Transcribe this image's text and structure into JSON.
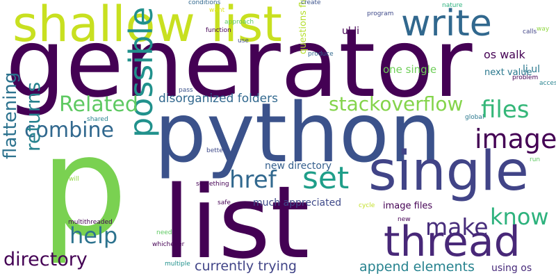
{
  "words": [
    {
      "text": "generator",
      "color": "#440154"
    },
    {
      "text": "python",
      "color": "#3b528b"
    },
    {
      "text": "list",
      "color": "#440154"
    },
    {
      "text": "p",
      "color": "#7ad151"
    },
    {
      "text": "shallow list",
      "color": "#c8e020"
    },
    {
      "text": "single",
      "color": "#414487"
    },
    {
      "text": "thread",
      "color": "#482878"
    },
    {
      "text": "write",
      "color": "#31688e"
    },
    {
      "text": "possible",
      "color": "#21918c"
    },
    {
      "text": "set",
      "color": "#1f9e89"
    },
    {
      "text": "image",
      "color": "#440154"
    },
    {
      "text": "href",
      "color": "#31688e"
    },
    {
      "text": "files",
      "color": "#35b779"
    },
    {
      "text": "make",
      "color": "#472d7b"
    },
    {
      "text": "know",
      "color": "#2db27d"
    },
    {
      "text": "help",
      "color": "#2c728e"
    },
    {
      "text": "Related",
      "color": "#5ec962"
    },
    {
      "text": "combine",
      "color": "#31688e"
    },
    {
      "text": "returns",
      "color": "#26828e"
    },
    {
      "text": "stackoverflow",
      "color": "#84d44b"
    },
    {
      "text": "directory",
      "color": "#440154"
    },
    {
      "text": "flattening",
      "color": "#2c728e"
    },
    {
      "text": "currently trying",
      "color": "#414487"
    },
    {
      "text": "append elements",
      "color": "#26828e"
    },
    {
      "text": "disorganized folders",
      "color": "#31688e"
    },
    {
      "text": "image files",
      "color": "#440154"
    },
    {
      "text": "much appreciated",
      "color": "#3e4989"
    },
    {
      "text": "new directory",
      "color": "#355f8d"
    },
    {
      "text": "os walk",
      "color": "#440154"
    },
    {
      "text": "one single",
      "color": "#6ece58"
    },
    {
      "text": "next value",
      "color": "#2a788e"
    },
    {
      "text": "ul li",
      "color": "#440154"
    },
    {
      "text": "li ul",
      "color": "#2a788e"
    },
    {
      "text": "using os",
      "color": "#472a7a"
    },
    {
      "text": "questions flattening",
      "color": "#b5de2b"
    },
    {
      "text": "conditions",
      "color": "#31688e"
    },
    {
      "text": "create",
      "color": "#3b528b"
    },
    {
      "text": "nature",
      "color": "#2db27d"
    },
    {
      "text": "program",
      "color": "#3e4989"
    },
    {
      "text": "want",
      "color": "#dde318"
    },
    {
      "text": "calls",
      "color": "#414487"
    },
    {
      "text": "way",
      "color": "#90d743"
    },
    {
      "text": "function",
      "color": "#440154"
    },
    {
      "text": "approach",
      "color": "#5ec962"
    },
    {
      "text": "use",
      "color": "#3e4989"
    },
    {
      "text": "produce",
      "color": "#31688e"
    },
    {
      "text": "pass",
      "color": "#3b528b"
    },
    {
      "text": "shared",
      "color": "#26828e"
    },
    {
      "text": "problem",
      "color": "#440154"
    },
    {
      "text": "accessing",
      "color": "#26828e"
    },
    {
      "text": "global",
      "color": "#2a788e"
    },
    {
      "text": "better",
      "color": "#3e4989"
    },
    {
      "text": "something",
      "color": "#440154"
    },
    {
      "text": "run",
      "color": "#5ec962"
    },
    {
      "text": "will",
      "color": "#90d743"
    },
    {
      "text": "safe",
      "color": "#440154"
    },
    {
      "text": "cycle",
      "color": "#c2df23"
    },
    {
      "text": "multithreaded",
      "color": "#440154"
    },
    {
      "text": "need",
      "color": "#5ec962"
    },
    {
      "text": "new",
      "color": "#440154"
    },
    {
      "text": "whichever",
      "color": "#440154"
    },
    {
      "text": "multiple",
      "color": "#21918c"
    }
  ]
}
